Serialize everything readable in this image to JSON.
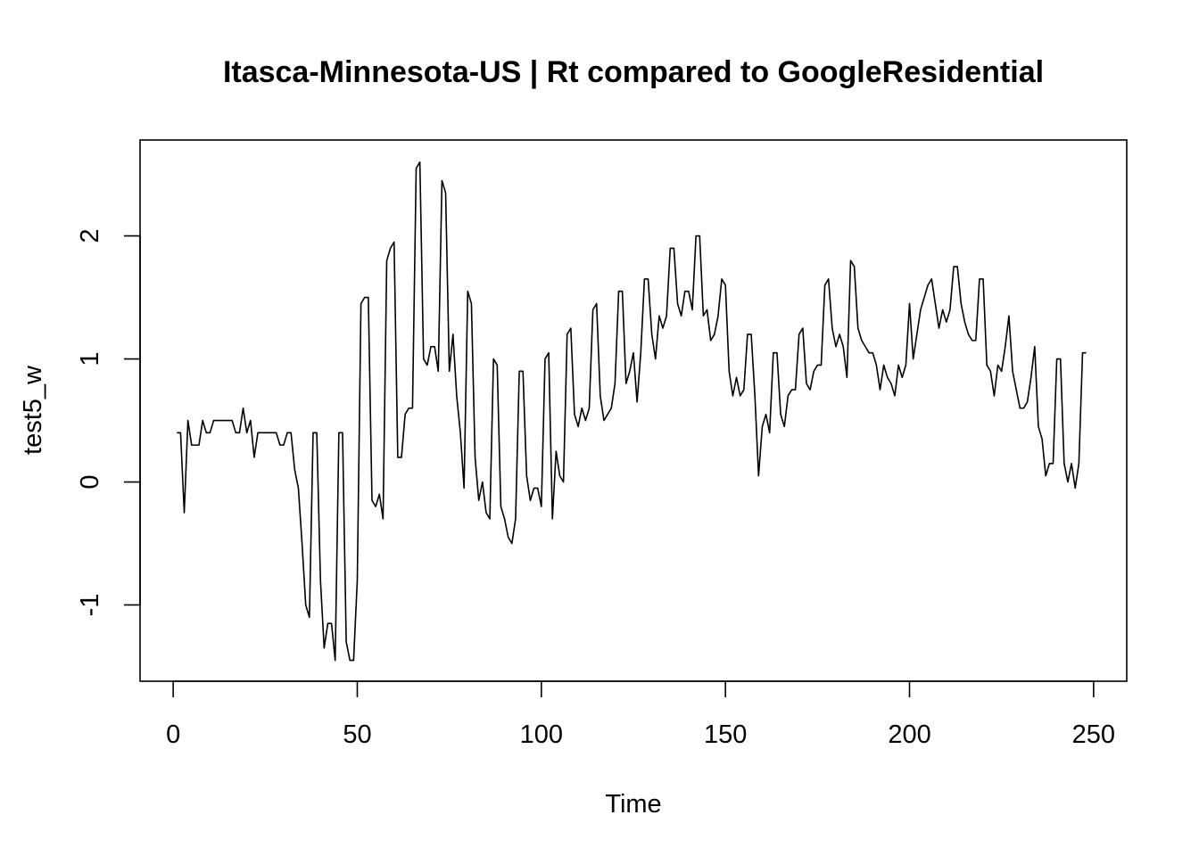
{
  "chart_data": {
    "type": "line",
    "title": "Itasca-Minnesota-US | Rt compared to GoogleResidential",
    "xlabel": "Time",
    "ylabel": "test5_w",
    "xlim": [
      -9,
      259
    ],
    "ylim": [
      -1.62,
      2.78
    ],
    "xticks": [
      0,
      50,
      100,
      150,
      200,
      250
    ],
    "yticks": [
      -1,
      0,
      1,
      2
    ],
    "grid": false,
    "legend": "none",
    "line_color": "#000000",
    "series": [
      {
        "x": [
          1,
          2,
          3,
          4,
          5,
          6,
          7,
          8,
          9,
          10,
          11,
          12,
          13,
          14,
          15,
          16,
          17,
          18,
          19,
          20,
          21,
          22,
          23,
          24,
          25,
          26,
          27,
          28,
          29,
          30,
          31,
          32,
          33,
          34,
          35,
          36,
          37,
          38,
          39,
          40,
          41,
          42,
          43,
          44,
          45,
          46,
          47,
          48,
          49,
          50,
          51,
          52,
          53,
          54,
          55,
          56,
          57,
          58,
          59,
          60,
          61,
          62,
          63,
          64,
          65,
          66,
          67,
          68,
          69,
          70,
          71,
          72,
          73,
          74,
          75,
          76,
          77,
          78,
          79,
          80,
          81,
          82,
          83,
          84,
          85,
          86,
          87,
          88,
          89,
          90,
          91,
          92,
          93,
          94,
          95,
          96,
          97,
          98,
          99,
          100,
          101,
          102,
          103,
          104,
          105,
          106,
          107,
          108,
          109,
          110,
          111,
          112,
          113,
          114,
          115,
          116,
          117,
          118,
          119,
          120,
          121,
          122,
          123,
          124,
          125,
          126,
          127,
          128,
          129,
          130,
          131,
          132,
          133,
          134,
          135,
          136,
          137,
          138,
          139,
          140,
          141,
          142,
          143,
          144,
          145,
          146,
          147,
          148,
          149,
          150,
          151,
          152,
          153,
          154,
          155,
          156,
          157,
          158,
          159,
          160,
          161,
          162,
          163,
          164,
          165,
          166,
          167,
          168,
          169,
          170,
          171,
          172,
          173,
          174,
          175,
          176,
          177,
          178,
          179,
          180,
          181,
          182,
          183,
          184,
          185,
          186,
          187,
          188,
          189,
          190,
          191,
          192,
          193,
          194,
          195,
          196,
          197,
          198,
          199,
          200,
          201,
          202,
          203,
          204,
          205,
          206,
          207,
          208,
          209,
          210,
          211,
          212,
          213,
          214,
          215,
          216,
          217,
          218,
          219,
          220,
          221,
          222,
          223,
          224,
          225,
          226,
          227,
          228,
          229,
          230,
          231,
          232,
          233,
          234,
          235,
          236,
          237,
          238,
          239,
          240,
          241,
          242,
          243,
          244,
          245,
          246,
          247,
          248
        ],
        "values": [
          0.4,
          0.4,
          -0.25,
          0.5,
          0.3,
          0.3,
          0.3,
          0.5,
          0.4,
          0.4,
          0.5,
          0.5,
          0.5,
          0.5,
          0.5,
          0.5,
          0.4,
          0.4,
          0.6,
          0.4,
          0.5,
          0.2,
          0.4,
          0.4,
          0.4,
          0.4,
          0.4,
          0.4,
          0.3,
          0.3,
          0.4,
          0.4,
          0.1,
          -0.05,
          -0.5,
          -1.0,
          -1.1,
          0.4,
          0.4,
          -0.8,
          -1.35,
          -1.15,
          -1.15,
          -1.45,
          0.4,
          0.4,
          -1.3,
          -1.45,
          -1.45,
          -0.8,
          1.45,
          1.5,
          1.5,
          -0.15,
          -0.2,
          -0.1,
          -0.3,
          1.8,
          1.9,
          1.95,
          0.2,
          0.2,
          0.55,
          0.6,
          0.6,
          2.55,
          2.6,
          1.0,
          0.95,
          1.1,
          1.1,
          0.9,
          2.45,
          2.35,
          0.9,
          1.2,
          0.7,
          0.4,
          -0.05,
          1.55,
          1.45,
          0.2,
          -0.15,
          0.0,
          -0.25,
          -0.3,
          1.0,
          0.95,
          -0.2,
          -0.3,
          -0.45,
          -0.5,
          -0.3,
          0.9,
          0.9,
          0.05,
          -0.15,
          -0.05,
          -0.05,
          -0.2,
          1.0,
          1.05,
          -0.3,
          0.25,
          0.05,
          0.0,
          1.2,
          1.25,
          0.55,
          0.45,
          0.6,
          0.5,
          0.6,
          1.4,
          1.45,
          0.7,
          0.5,
          0.55,
          0.6,
          0.8,
          1.55,
          1.55,
          0.8,
          0.9,
          1.05,
          0.65,
          1.05,
          1.65,
          1.65,
          1.2,
          1.0,
          1.35,
          1.25,
          1.35,
          1.9,
          1.9,
          1.45,
          1.35,
          1.55,
          1.55,
          1.4,
          2.0,
          2.0,
          1.35,
          1.4,
          1.15,
          1.2,
          1.35,
          1.65,
          1.6,
          0.9,
          0.7,
          0.85,
          0.7,
          0.75,
          1.2,
          1.2,
          0.7,
          0.05,
          0.45,
          0.55,
          0.4,
          1.05,
          1.05,
          0.55,
          0.45,
          0.7,
          0.75,
          0.75,
          1.2,
          1.25,
          0.8,
          0.75,
          0.9,
          0.95,
          0.95,
          1.6,
          1.65,
          1.25,
          1.1,
          1.2,
          1.1,
          0.85,
          1.8,
          1.75,
          1.25,
          1.15,
          1.1,
          1.05,
          1.05,
          0.95,
          0.75,
          0.95,
          0.85,
          0.8,
          0.7,
          0.95,
          0.85,
          0.95,
          1.45,
          1.0,
          1.2,
          1.4,
          1.5,
          1.6,
          1.65,
          1.45,
          1.25,
          1.4,
          1.3,
          1.4,
          1.75,
          1.75,
          1.45,
          1.3,
          1.2,
          1.15,
          1.15,
          1.65,
          1.65,
          0.95,
          0.9,
          0.7,
          0.95,
          0.9,
          1.1,
          1.35,
          0.9,
          0.75,
          0.6,
          0.6,
          0.65,
          0.85,
          1.1,
          0.45,
          0.35,
          0.05,
          0.15,
          0.15,
          1.0,
          1.0,
          0.15,
          0.0,
          0.15,
          -0.05,
          0.15,
          1.05,
          1.05
        ]
      }
    ]
  }
}
